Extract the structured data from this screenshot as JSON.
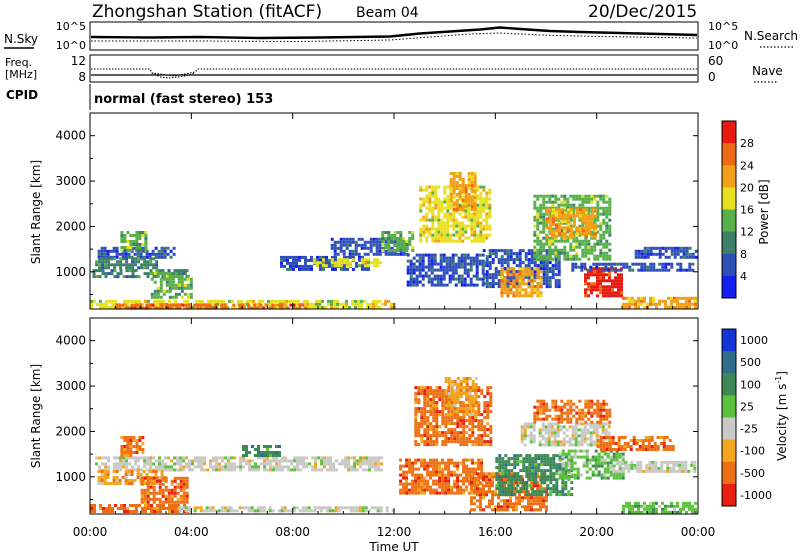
{
  "header": {
    "station": "Zhongshan Station (fitACF)",
    "beam": "Beam 04",
    "date": "20/Dec/2015"
  },
  "noise_panel": {
    "left_label": "N.Sky",
    "right_label": "N.Search",
    "ticks_left": [
      "10^5",
      "10^0"
    ],
    "ticks_right": [
      "10^5",
      "10^0"
    ]
  },
  "freq_panel": {
    "left_label_1": "Freq.",
    "left_label_2": "[MHz]",
    "right_label": "Nave",
    "ticks_left": [
      "12",
      "8"
    ],
    "ticks_right": [
      "60",
      "0"
    ]
  },
  "cpid": {
    "label": "CPID",
    "value": "normal (fast stereo) 153"
  },
  "chart_data": [
    {
      "type": "heatmap",
      "name": "power",
      "ylabel": "Slant Range [km]",
      "ylim": [
        180,
        4500
      ],
      "yticks": [
        "1000",
        "2000",
        "3000",
        "4000"
      ],
      "ytick_values": [
        1000,
        2000,
        3000,
        4000
      ],
      "colorbar_label": "Power [dB]",
      "colorbar_ticks": [
        "4",
        "8",
        "12",
        "16",
        "20",
        "24",
        "28"
      ],
      "colorbar_colors": [
        "#1420f0",
        "#2e4fb8",
        "#3d7f6a",
        "#57b04a",
        "#e6e020",
        "#f2a01a",
        "#ee6a14",
        "#e61a10"
      ],
      "regions": [
        {
          "t": [
            0.3,
            3.3
          ],
          "r": [
            1350,
            1550
          ],
          "level": 1
        },
        {
          "t": [
            0.2,
            2.6
          ],
          "r": [
            1080,
            1320
          ],
          "level": 2
        },
        {
          "t": [
            1.2,
            2.2
          ],
          "r": [
            1500,
            1900
          ],
          "level": 3
        },
        {
          "t": [
            0.1,
            3.8
          ],
          "r": [
            880,
            1060
          ],
          "level": 2
        },
        {
          "t": [
            0.0,
            12.0
          ],
          "r": [
            230,
            380
          ],
          "level": 4
        },
        {
          "t": [
            1.0,
            8.5
          ],
          "r": [
            200,
            300
          ],
          "level": 6
        },
        {
          "t": [
            2.4,
            4.0
          ],
          "r": [
            450,
            1000
          ],
          "level": 3
        },
        {
          "t": [
            7.5,
            11.0
          ],
          "r": [
            1050,
            1350
          ],
          "level": 1
        },
        {
          "t": [
            8.8,
            11.5
          ],
          "r": [
            1150,
            1300
          ],
          "level": 4
        },
        {
          "t": [
            9.5,
            12.5
          ],
          "r": [
            1400,
            1750
          ],
          "level": 1
        },
        {
          "t": [
            11.5,
            12.8
          ],
          "r": [
            1500,
            1900
          ],
          "level": 3
        },
        {
          "t": [
            12.5,
            15.5
          ],
          "r": [
            700,
            1400
          ],
          "level": 1
        },
        {
          "t": [
            13.0,
            15.8
          ],
          "r": [
            1700,
            2900
          ],
          "level": 4
        },
        {
          "t": [
            14.2,
            15.2
          ],
          "r": [
            2400,
            3200
          ],
          "level": 5
        },
        {
          "t": [
            15.5,
            18.5
          ],
          "r": [
            700,
            1500
          ],
          "level": 1
        },
        {
          "t": [
            16.2,
            17.8
          ],
          "r": [
            450,
            1100
          ],
          "level": 5
        },
        {
          "t": [
            17.5,
            20.5
          ],
          "r": [
            1300,
            2700
          ],
          "level": 3
        },
        {
          "t": [
            18.0,
            20.0
          ],
          "r": [
            1800,
            2400
          ],
          "level": 5
        },
        {
          "t": [
            19.5,
            21.0
          ],
          "r": [
            500,
            1100
          ],
          "level": 7
        },
        {
          "t": [
            21.0,
            23.9
          ],
          "r": [
            250,
            450
          ],
          "level": 5
        },
        {
          "t": [
            19.0,
            23.9
          ],
          "r": [
            1050,
            1200
          ],
          "level": 1
        },
        {
          "t": [
            21.5,
            23.9
          ],
          "r": [
            1350,
            1550
          ],
          "level": 1
        }
      ]
    },
    {
      "type": "heatmap",
      "name": "velocity",
      "ylabel": "Slant Range [km]",
      "ylim": [
        180,
        4500
      ],
      "yticks": [
        "1000",
        "2000",
        "3000",
        "4000"
      ],
      "ytick_values": [
        1000,
        2000,
        3000,
        4000
      ],
      "xlabel": "Time UT",
      "xticks": [
        "00:00",
        "04:00",
        "08:00",
        "12:00",
        "16:00",
        "20:00",
        "00:00"
      ],
      "xlim_hours": [
        0,
        24
      ],
      "colorbar_label": "Velocity [m s",
      "colorbar_label_sup": "-1",
      "colorbar_label_end": "]",
      "colorbar_ticks": [
        "1000",
        "500",
        "100",
        "25",
        "-25",
        "-100",
        "-500",
        "-1000"
      ],
      "colorbar_colors": [
        "#1434d8",
        "#2f6e8a",
        "#3d8a56",
        "#5cc23c",
        "#c8c8c4",
        "#f2a61e",
        "#ee7014",
        "#e82010"
      ],
      "regions": [
        {
          "t": [
            0.2,
            11.5
          ],
          "r": [
            1150,
            1450
          ],
          "level": 4
        },
        {
          "t": [
            0.0,
            3.8
          ],
          "r": [
            220,
            400
          ],
          "level": 6
        },
        {
          "t": [
            0.3,
            3.0
          ],
          "r": [
            850,
            1150
          ],
          "level": 5
        },
        {
          "t": [
            1.2,
            2.1
          ],
          "r": [
            1500,
            1900
          ],
          "level": 6
        },
        {
          "t": [
            2.0,
            3.8
          ],
          "r": [
            450,
            1000
          ],
          "level": 6
        },
        {
          "t": [
            3.5,
            12.0
          ],
          "r": [
            220,
            350
          ],
          "level": 4
        },
        {
          "t": [
            6.0,
            7.5
          ],
          "r": [
            1500,
            1700
          ],
          "level": 2
        },
        {
          "t": [
            12.2,
            15.5
          ],
          "r": [
            650,
            1400
          ],
          "level": 6
        },
        {
          "t": [
            12.8,
            15.8
          ],
          "r": [
            1700,
            3000
          ],
          "level": 6
        },
        {
          "t": [
            14.0,
            15.2
          ],
          "r": [
            2400,
            3200
          ],
          "level": 5
        },
        {
          "t": [
            15.0,
            18.0
          ],
          "r": [
            300,
            1100
          ],
          "level": 6
        },
        {
          "t": [
            16.0,
            19.0
          ],
          "r": [
            600,
            1500
          ],
          "level": 2
        },
        {
          "t": [
            17.0,
            20.5
          ],
          "r": [
            1700,
            2200
          ],
          "level": 4
        },
        {
          "t": [
            17.5,
            20.5
          ],
          "r": [
            2200,
            2700
          ],
          "level": 6
        },
        {
          "t": [
            18.5,
            21.0
          ],
          "r": [
            1000,
            1600
          ],
          "level": 3
        },
        {
          "t": [
            20.5,
            23.9
          ],
          "r": [
            1150,
            1350
          ],
          "level": 4
        },
        {
          "t": [
            21.0,
            23.9
          ],
          "r": [
            250,
            450
          ],
          "level": 3
        },
        {
          "t": [
            20.0,
            23.0
          ],
          "r": [
            1600,
            1900
          ],
          "level": 6
        }
      ]
    }
  ]
}
